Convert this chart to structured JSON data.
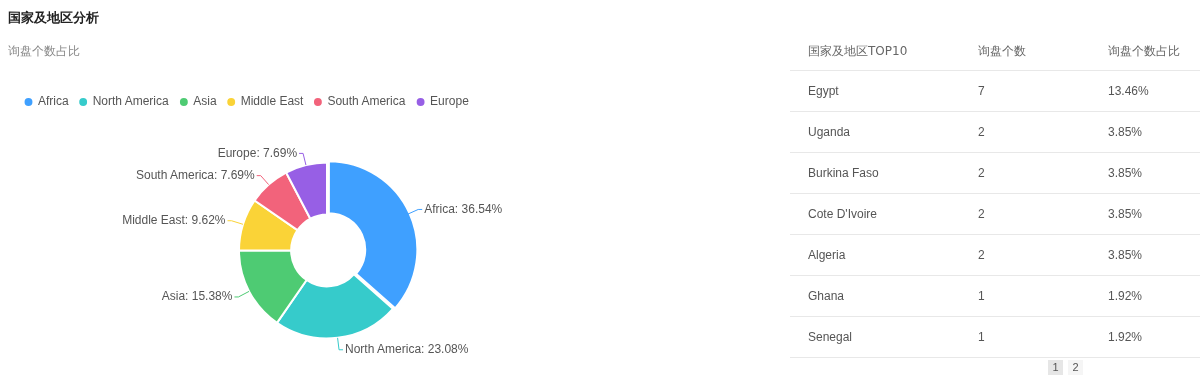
{
  "chart_data": [
    {
      "type": "donut",
      "title": "国家及地区分析",
      "subtitle": "询盘个数占比",
      "categories": [
        "Africa",
        "North America",
        "Asia",
        "Middle East",
        "South America",
        "Europe"
      ],
      "values": [
        36.54,
        23.08,
        15.38,
        9.62,
        7.69,
        7.69
      ],
      "colors": [
        "#3fa0ff",
        "#36cbcb",
        "#4ecb73",
        "#fad337",
        "#f2637b",
        "#975fe5"
      ],
      "value_labels": [
        "Africa: 36.54%",
        "North America: 23.08%",
        "Asia: 15.38%",
        "Middle East: 9.62%",
        "South America: 7.69%",
        "Europe: 7.69%"
      ],
      "legend": "top left"
    },
    {
      "type": "other",
      "xlabel": "国家及地区TOP10",
      "categories": [
        "Egypt",
        "Uganda",
        "Burkina Faso",
        "Cote D'Ivoire",
        "Algeria",
        "Ghana",
        "Senegal"
      ],
      "series": [
        {
          "name": "询盘个数",
          "values": [
            7,
            2,
            2,
            2,
            2,
            1,
            1
          ]
        },
        {
          "name": "询盘个数占比",
          "values": [
            13.46,
            3.85,
            3.85,
            3.85,
            3.85,
            1.92,
            1.92
          ],
          "value_labels": [
            "13.46%",
            "3.85%",
            "3.85%",
            "3.85%",
            "3.85%",
            "1.92%",
            "1.92%"
          ]
        }
      ],
      "data_labels": true,
      "annotations": [
        "1",
        "2"
      ]
    }
  ]
}
